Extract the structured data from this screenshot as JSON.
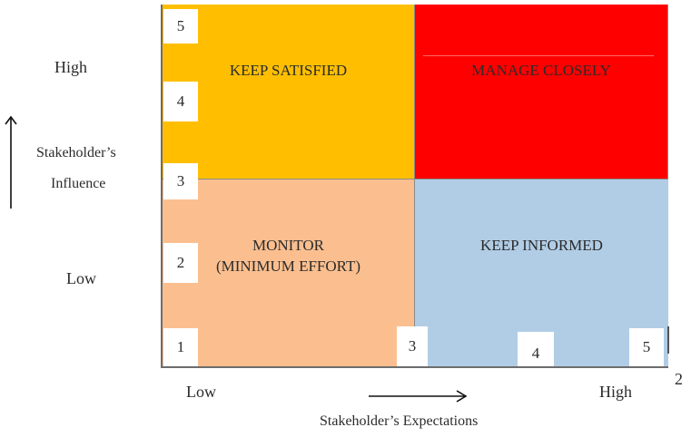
{
  "quadrants": {
    "keep_satisfied": {
      "label": "KEEP SATISFIED",
      "color": "#ffbf00"
    },
    "manage_closely": {
      "label": "MANAGE CLOSELY",
      "color": "#ff0000"
    },
    "monitor": {
      "line1": "MONITOR",
      "line2": "(MINIMUM EFFORT)",
      "color": "#fbbf8f"
    },
    "keep_informed": {
      "label": "KEEP INFORMED",
      "color": "#b1cde6"
    }
  },
  "y_axis": {
    "label_line1": "Stakeholder’s",
    "label_line2": "Influence",
    "high": "High",
    "low": "Low",
    "ticks": [
      "5",
      "4",
      "3",
      "2",
      "1"
    ]
  },
  "x_axis": {
    "label": "Stakeholder’s Expectations",
    "low": "Low",
    "high": "High",
    "ticks": [
      "3",
      "4",
      "5"
    ]
  },
  "stray_label": "2"
}
